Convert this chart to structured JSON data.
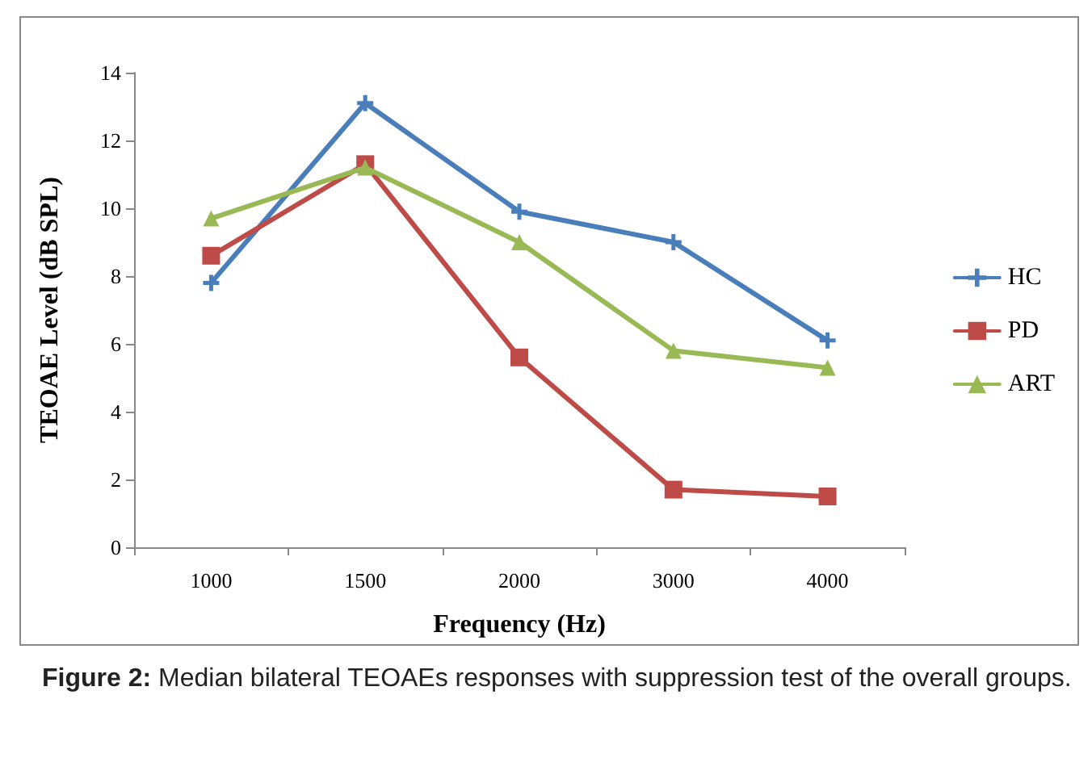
{
  "chart_data": {
    "type": "line",
    "xlabel": "Frequency (Hz)",
    "ylabel": "TEOAE Level (dB SPL)",
    "categories": [
      "1000",
      "1500",
      "2000",
      "3000",
      "4000"
    ],
    "series": [
      {
        "name": "HC",
        "color": "#4a7ebb",
        "marker": "cross",
        "values": [
          7.8,
          13.1,
          9.9,
          9.0,
          6.1
        ]
      },
      {
        "name": "PD",
        "color": "#be4b48",
        "marker": "square",
        "values": [
          8.6,
          11.3,
          5.6,
          1.7,
          1.5
        ]
      },
      {
        "name": "ART",
        "color": "#98b954",
        "marker": "triangle",
        "values": [
          9.7,
          11.2,
          9.0,
          5.8,
          5.3
        ]
      }
    ],
    "ylim": [
      0,
      14
    ],
    "yticks": [
      0,
      2,
      4,
      6,
      8,
      10,
      12,
      14
    ],
    "grid": false,
    "legend": "right",
    "annotations": [
      "Figure 2: Median bilateral TEOAEs responses with suppression test of the overall groups."
    ]
  }
}
